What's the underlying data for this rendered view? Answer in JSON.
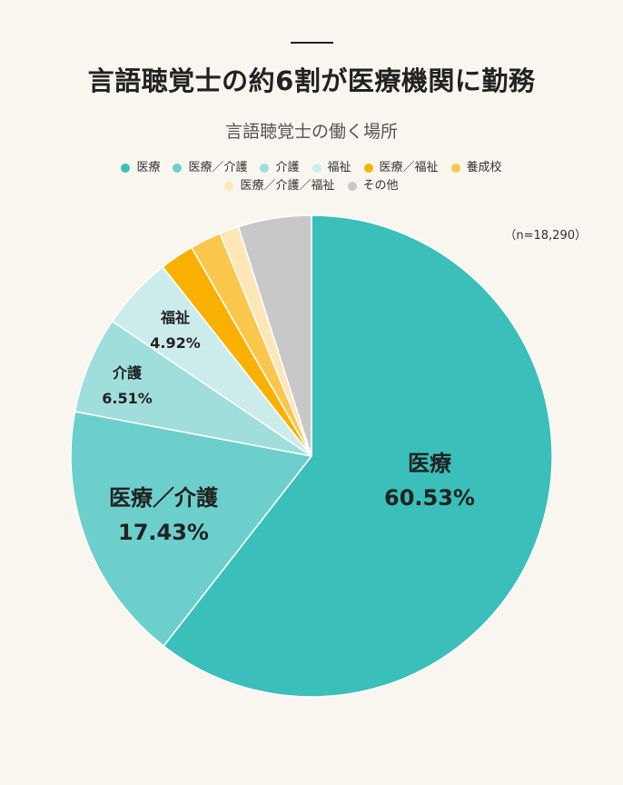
{
  "header": {
    "title": "言語聴覚士の約6割が医療機関に勤務",
    "subtitle": "言語聴覚士の働く場所"
  },
  "sample_size_label": "（n=18,290）",
  "legend": [
    {
      "label": "医療",
      "color": "#3bbfba"
    },
    {
      "label": "医療／介護",
      "color": "#6dcfcb"
    },
    {
      "label": "介護",
      "color": "#9fdedb"
    },
    {
      "label": "福祉",
      "color": "#ccecec"
    },
    {
      "label": "医療／福祉",
      "color": "#f9b000"
    },
    {
      "label": "養成校",
      "color": "#fbc64c"
    },
    {
      "label": "医療／介護／福祉",
      "color": "#fde6b8"
    },
    {
      "label": "その他",
      "color": "#c8c8c8"
    }
  ],
  "labels": {
    "iryo": {
      "name": "医療",
      "pct": "60.53%"
    },
    "iryo_kaigo": {
      "name": "医療／介護",
      "pct": "17.43%"
    },
    "kaigo": {
      "name": "介護",
      "pct": "6.51%"
    },
    "fukushi": {
      "name": "福祉",
      "pct": "4.92%"
    }
  },
  "chart_data": {
    "type": "pie",
    "title": "言語聴覚士の約6割が医療機関に勤務",
    "subtitle": "言語聴覚士の働く場所",
    "annotation": "（n=18,290）",
    "start_angle": "12 o'clock, clockwise",
    "legend_position": "top",
    "categories": [
      "医療",
      "医療／介護",
      "介護",
      "福祉",
      "医療／福祉",
      "養成校",
      "医療／介護／福祉",
      "その他"
    ],
    "values": [
      60.53,
      17.43,
      6.51,
      4.92,
      2.3,
      2.1,
      1.3,
      4.91
    ],
    "value_labels": [
      "60.53%",
      "17.43%",
      "6.51%",
      "4.92%",
      "",
      "",
      "",
      ""
    ],
    "colors": [
      "#3bbfba",
      "#6dcfcb",
      "#9fdedb",
      "#ccecec",
      "#f9b000",
      "#fbc64c",
      "#fde6b8",
      "#c8c8c8"
    ],
    "unit": "%"
  }
}
